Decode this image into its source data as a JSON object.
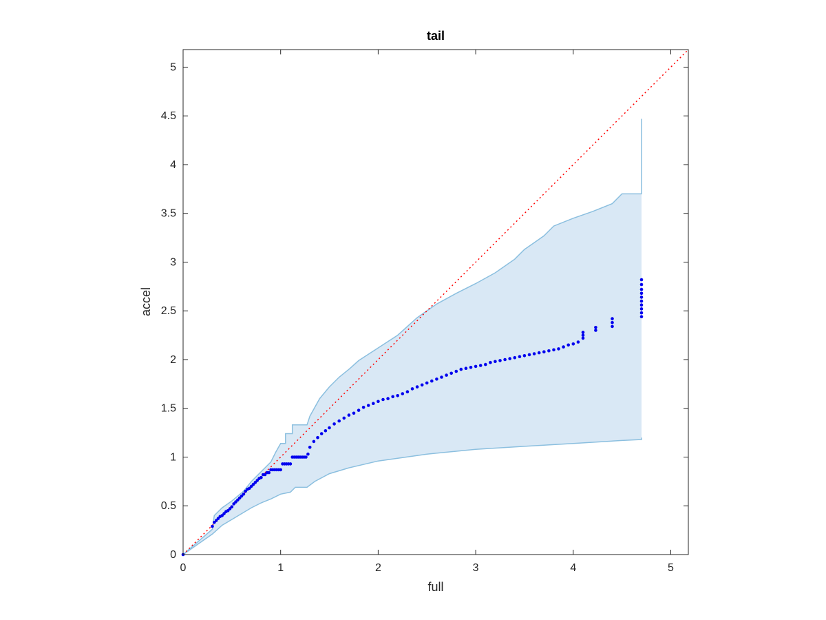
{
  "chart_data": {
    "type": "scatter",
    "title": "tail",
    "xlabel": "full",
    "ylabel": "accel",
    "xlim": [
      0,
      5.18
    ],
    "ylim": [
      0,
      5.18
    ],
    "xticks": [
      0,
      1,
      2,
      3,
      4,
      5
    ],
    "yticks": [
      0,
      0.5,
      1,
      1.5,
      2,
      2.5,
      3,
      3.5,
      4,
      4.5,
      5
    ],
    "xtick_labels": [
      "0",
      "1",
      "2",
      "3",
      "4",
      "5"
    ],
    "ytick_labels": [
      "0",
      "0.5",
      "1",
      "1.5",
      "2",
      "2.5",
      "3",
      "3.5",
      "4",
      "4.5",
      "5"
    ],
    "grid": false,
    "colors": {
      "points": "#0000ee",
      "band_fill": "#d9e8f5",
      "band_edge": "#8bbfdf",
      "reference_line": "#ff0000",
      "axes": "#262626"
    },
    "reference_line": {
      "from": [
        0,
        0
      ],
      "to": [
        5.18,
        5.18
      ],
      "style": "dotted"
    },
    "band_upper": [
      [
        0,
        0
      ],
      [
        0.3,
        0.26
      ],
      [
        0.32,
        0.4
      ],
      [
        0.4,
        0.48
      ],
      [
        0.5,
        0.55
      ],
      [
        0.62,
        0.65
      ],
      [
        0.7,
        0.75
      ],
      [
        0.8,
        0.85
      ],
      [
        0.9,
        0.95
      ],
      [
        0.95,
        1.05
      ],
      [
        1.0,
        1.14
      ],
      [
        1.05,
        1.14
      ],
      [
        1.05,
        1.24
      ],
      [
        1.12,
        1.24
      ],
      [
        1.12,
        1.33
      ],
      [
        1.27,
        1.33
      ],
      [
        1.3,
        1.42
      ],
      [
        1.4,
        1.6
      ],
      [
        1.5,
        1.72
      ],
      [
        1.6,
        1.82
      ],
      [
        1.7,
        1.9
      ],
      [
        1.8,
        1.99
      ],
      [
        2.0,
        2.12
      ],
      [
        2.2,
        2.25
      ],
      [
        2.4,
        2.43
      ],
      [
        2.6,
        2.57
      ],
      [
        2.8,
        2.68
      ],
      [
        3.0,
        2.78
      ],
      [
        3.2,
        2.89
      ],
      [
        3.4,
        3.03
      ],
      [
        3.5,
        3.13
      ],
      [
        3.6,
        3.2
      ],
      [
        3.7,
        3.27
      ],
      [
        3.8,
        3.37
      ],
      [
        4.0,
        3.45
      ],
      [
        4.2,
        3.52
      ],
      [
        4.4,
        3.6
      ],
      [
        4.5,
        3.7
      ],
      [
        4.7,
        3.7
      ],
      [
        4.7,
        4.47
      ]
    ],
    "band_lower": [
      [
        0,
        0
      ],
      [
        0.3,
        0.21
      ],
      [
        0.4,
        0.3
      ],
      [
        0.5,
        0.36
      ],
      [
        0.6,
        0.42
      ],
      [
        0.7,
        0.48
      ],
      [
        0.8,
        0.53
      ],
      [
        0.9,
        0.57
      ],
      [
        1.0,
        0.62
      ],
      [
        1.1,
        0.64
      ],
      [
        1.15,
        0.69
      ],
      [
        1.27,
        0.69
      ],
      [
        1.35,
        0.75
      ],
      [
        1.5,
        0.83
      ],
      [
        1.7,
        0.89
      ],
      [
        2.0,
        0.96
      ],
      [
        2.5,
        1.03
      ],
      [
        3.0,
        1.08
      ],
      [
        3.5,
        1.11
      ],
      [
        4.0,
        1.14
      ],
      [
        4.5,
        1.17
      ],
      [
        4.7,
        1.18
      ],
      [
        4.7,
        1.2
      ]
    ],
    "series": [
      {
        "x": [
          0,
          0.3,
          0.32,
          0.34,
          0.36,
          0.38,
          0.4,
          0.42,
          0.44,
          0.46,
          0.48,
          0.5,
          0.52,
          0.54,
          0.56,
          0.58,
          0.6,
          0.62,
          0.64,
          0.66,
          0.68,
          0.7,
          0.72,
          0.74,
          0.76,
          0.78,
          0.8,
          0.82,
          0.84,
          0.86,
          0.88,
          0.9,
          0.92,
          0.94,
          0.96,
          0.98,
          1.0,
          1.02,
          1.04,
          1.06,
          1.08,
          1.1,
          1.12,
          1.14,
          1.16,
          1.18,
          1.2,
          1.22,
          1.24,
          1.26,
          1.28,
          1.3,
          1.34,
          1.38,
          1.42,
          1.46,
          1.5,
          1.55,
          1.6,
          1.65,
          1.7,
          1.75,
          1.8,
          1.85,
          1.9,
          1.95,
          2.0,
          2.05,
          2.1,
          2.15,
          2.2,
          2.25,
          2.3,
          2.35,
          2.4,
          2.45,
          2.5,
          2.55,
          2.6,
          2.65,
          2.7,
          2.75,
          2.8,
          2.85,
          2.9,
          2.95,
          3.0,
          3.05,
          3.1,
          3.15,
          3.2,
          3.25,
          3.3,
          3.35,
          3.4,
          3.45,
          3.5,
          3.55,
          3.6,
          3.65,
          3.7,
          3.75,
          3.8,
          3.85,
          3.9,
          3.95,
          4.0,
          4.05,
          4.1,
          4.1,
          4.1,
          4.23,
          4.23,
          4.4,
          4.4,
          4.4,
          4.7,
          4.7,
          4.7,
          4.7,
          4.7,
          4.7,
          4.7,
          4.7,
          4.7,
          4.7
        ],
        "y": [
          0,
          0.29,
          0.33,
          0.35,
          0.37,
          0.39,
          0.4,
          0.42,
          0.44,
          0.45,
          0.47,
          0.49,
          0.52,
          0.54,
          0.56,
          0.58,
          0.6,
          0.62,
          0.65,
          0.67,
          0.68,
          0.7,
          0.72,
          0.74,
          0.76,
          0.78,
          0.79,
          0.82,
          0.82,
          0.84,
          0.84,
          0.87,
          0.87,
          0.87,
          0.87,
          0.87,
          0.87,
          0.93,
          0.93,
          0.93,
          0.93,
          0.93,
          1.0,
          1.0,
          1.0,
          1.0,
          1.0,
          1.0,
          1.0,
          1.0,
          1.03,
          1.1,
          1.16,
          1.2,
          1.24,
          1.27,
          1.3,
          1.34,
          1.37,
          1.4,
          1.43,
          1.45,
          1.48,
          1.51,
          1.53,
          1.55,
          1.57,
          1.59,
          1.6,
          1.62,
          1.63,
          1.65,
          1.67,
          1.7,
          1.72,
          1.74,
          1.76,
          1.78,
          1.8,
          1.82,
          1.84,
          1.86,
          1.88,
          1.9,
          1.91,
          1.92,
          1.93,
          1.94,
          1.95,
          1.97,
          1.98,
          1.99,
          2.0,
          2.01,
          2.02,
          2.03,
          2.04,
          2.05,
          2.06,
          2.07,
          2.08,
          2.09,
          2.1,
          2.11,
          2.13,
          2.15,
          2.16,
          2.18,
          2.22,
          2.25,
          2.28,
          2.3,
          2.33,
          2.34,
          2.38,
          2.42,
          2.44,
          2.48,
          2.52,
          2.56,
          2.6,
          2.64,
          2.68,
          2.72,
          2.77,
          2.82
        ]
      }
    ]
  }
}
